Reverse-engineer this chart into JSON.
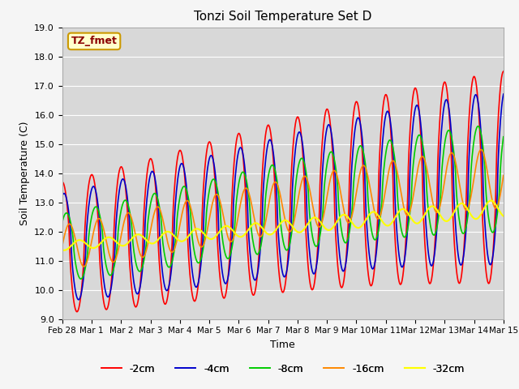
{
  "title": "Tonzi Soil Temperature Set D",
  "xlabel": "Time",
  "ylabel": "Soil Temperature (C)",
  "ylim": [
    9.0,
    19.0
  ],
  "yticks": [
    9.0,
    10.0,
    11.0,
    12.0,
    13.0,
    14.0,
    15.0,
    16.0,
    17.0,
    18.0,
    19.0
  ],
  "xtick_labels": [
    "Feb 28",
    "Mar 1",
    "Mar 2",
    "Mar 3",
    "Mar 4",
    "Mar 5",
    "Mar 6",
    "Mar 7",
    "Mar 8",
    "Mar 9",
    "Mar 10",
    "Mar 11",
    "Mar 12",
    "Mar 13",
    "Mar 14",
    "Mar 15"
  ],
  "legend_label": "TZ_fmet",
  "legend_box_color": "#ffffcc",
  "legend_box_edge": "#cc9900",
  "legend_text_color": "#8b0000",
  "series_labels": [
    "-2cm",
    "-4cm",
    "-8cm",
    "-16cm",
    "-32cm"
  ],
  "series_colors": [
    "#ff0000",
    "#0000cc",
    "#00cc00",
    "#ff8800",
    "#ffff00"
  ],
  "series_linewidths": [
    1.2,
    1.2,
    1.2,
    1.2,
    1.5
  ],
  "plot_bg_color": "#d8d8d8",
  "grid_color": "#ffffff",
  "fig_bg_color": "#f5f5f5"
}
